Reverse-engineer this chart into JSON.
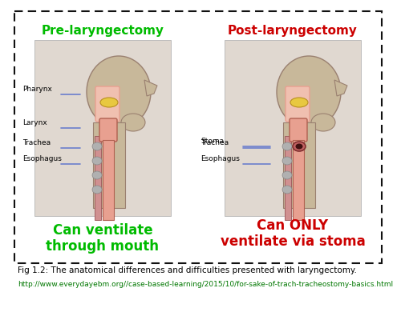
{
  "title_left": "Pre-laryngectomy",
  "title_right": "Post-laryngectomy",
  "title_left_color": "#00bb00",
  "title_right_color": "#cc0000",
  "labels_left": [
    "Pharynx",
    "Larynx",
    "Trachea",
    "Esophagus"
  ],
  "labels_right": [
    "Stoma",
    "Trachea",
    "Esophagus"
  ],
  "caption_left_line1": "Can ventilate",
  "caption_left_line2": "through mouth",
  "caption_right_line1": "Can ONLY",
  "caption_right_line2": "ventilate via stoma",
  "caption_left_color": "#00bb00",
  "caption_right_color": "#cc0000",
  "fig_caption": "Fig 1.2: The anatomical differences and difficulties presented with laryngectomy.",
  "fig_url": "http://www.everydayebm.org//case-based-learning/2015/10/for-sake-of-trach-tracheostomy-basics.html",
  "background_color": "#ffffff",
  "border_color": "#111111",
  "title_fontsize": 11,
  "caption_fontsize": 12,
  "fig_caption_fontsize": 7.5,
  "url_fontsize": 6.5,
  "img_bg": "#d8cfc8",
  "skin_color": "#c8b89a",
  "airway_color": "#e8a090",
  "airway_inner": "#f0c0b0",
  "tongue_color": "#e8c840",
  "label_color": "#000000",
  "line_color": "#3050cc"
}
